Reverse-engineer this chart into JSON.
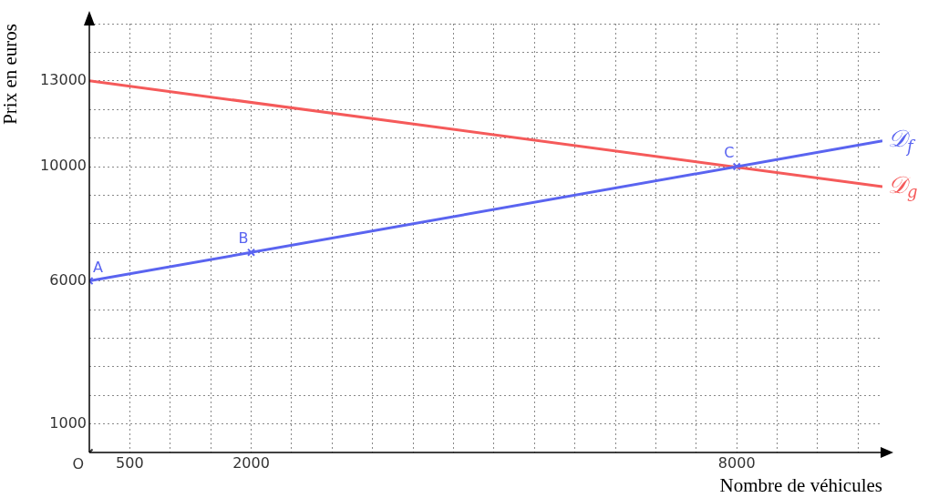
{
  "chart_data": {
    "type": "line",
    "xlabel": "Nombre de véhicules",
    "ylabel": "Prix en euros",
    "xlim": [
      0,
      9800
    ],
    "ylim": [
      0,
      15000
    ],
    "xticks": [
      500,
      {
        "value": 1000,
        "label": null
      },
      {
        "value": 1500,
        "label": null
      },
      2000,
      {
        "value": 2500,
        "label": null
      },
      {
        "value": 3000,
        "label": null
      },
      {
        "value": 3500,
        "label": null
      },
      {
        "value": 4000,
        "label": null
      },
      {
        "value": 4500,
        "label": null
      },
      {
        "value": 5000,
        "label": null
      },
      {
        "value": 5500,
        "label": null
      },
      {
        "value": 6000,
        "label": null
      },
      {
        "value": 6500,
        "label": null
      },
      {
        "value": 7000,
        "label": null
      },
      {
        "value": 7500,
        "label": null
      },
      8000,
      {
        "value": 8500,
        "label": null
      },
      {
        "value": 9000,
        "label": null
      },
      {
        "value": 9500,
        "label": null
      }
    ],
    "yticks": [
      1000,
      {
        "value": 2000,
        "label": null
      },
      {
        "value": 3000,
        "label": null
      },
      {
        "value": 4000,
        "label": null
      },
      {
        "value": 5000,
        "label": null
      },
      6000,
      {
        "value": 7000,
        "label": null
      },
      {
        "value": 8000,
        "label": null
      },
      {
        "value": 9000,
        "label": null
      },
      10000,
      {
        "value": 11000,
        "label": null
      },
      {
        "value": 12000,
        "label": null
      },
      13000,
      {
        "value": 14000,
        "label": null
      },
      {
        "value": 15000,
        "label": null
      }
    ],
    "grid": true,
    "legend": false,
    "line_style": "solid",
    "series": [
      {
        "name": "𝒟$_{f}$",
        "color": "#5a64f0",
        "x": [
          0,
          9800
        ],
        "values": [
          6000,
          10900
        ],
        "marker": "none"
      },
      {
        "name": "𝒟$_{g}$",
        "color": "#f55a5a",
        "x": [
          0,
          9800
        ],
        "values": [
          13000,
          9300
        ],
        "marker": "none"
      },
      {
        "type": "scatter",
        "color": "#5a64f0",
        "x": [
          0,
          2000,
          8000
        ],
        "values": [
          6000,
          7000,
          10000
        ],
        "marker": "cross"
      },
      {
        "type": "scatter",
        "color": "#333333",
        "x": [
          0
        ],
        "values": [
          0
        ],
        "marker": "cross"
      }
    ],
    "annotations": [
      {
        "text": "A",
        "x": 0,
        "y": 6000
      },
      {
        "text": "B",
        "x": 2000,
        "y": 7000
      },
      {
        "text": "C",
        "x": 8000,
        "y": 10000
      },
      {
        "text": "O",
        "x": 0,
        "y": 0
      }
    ]
  }
}
